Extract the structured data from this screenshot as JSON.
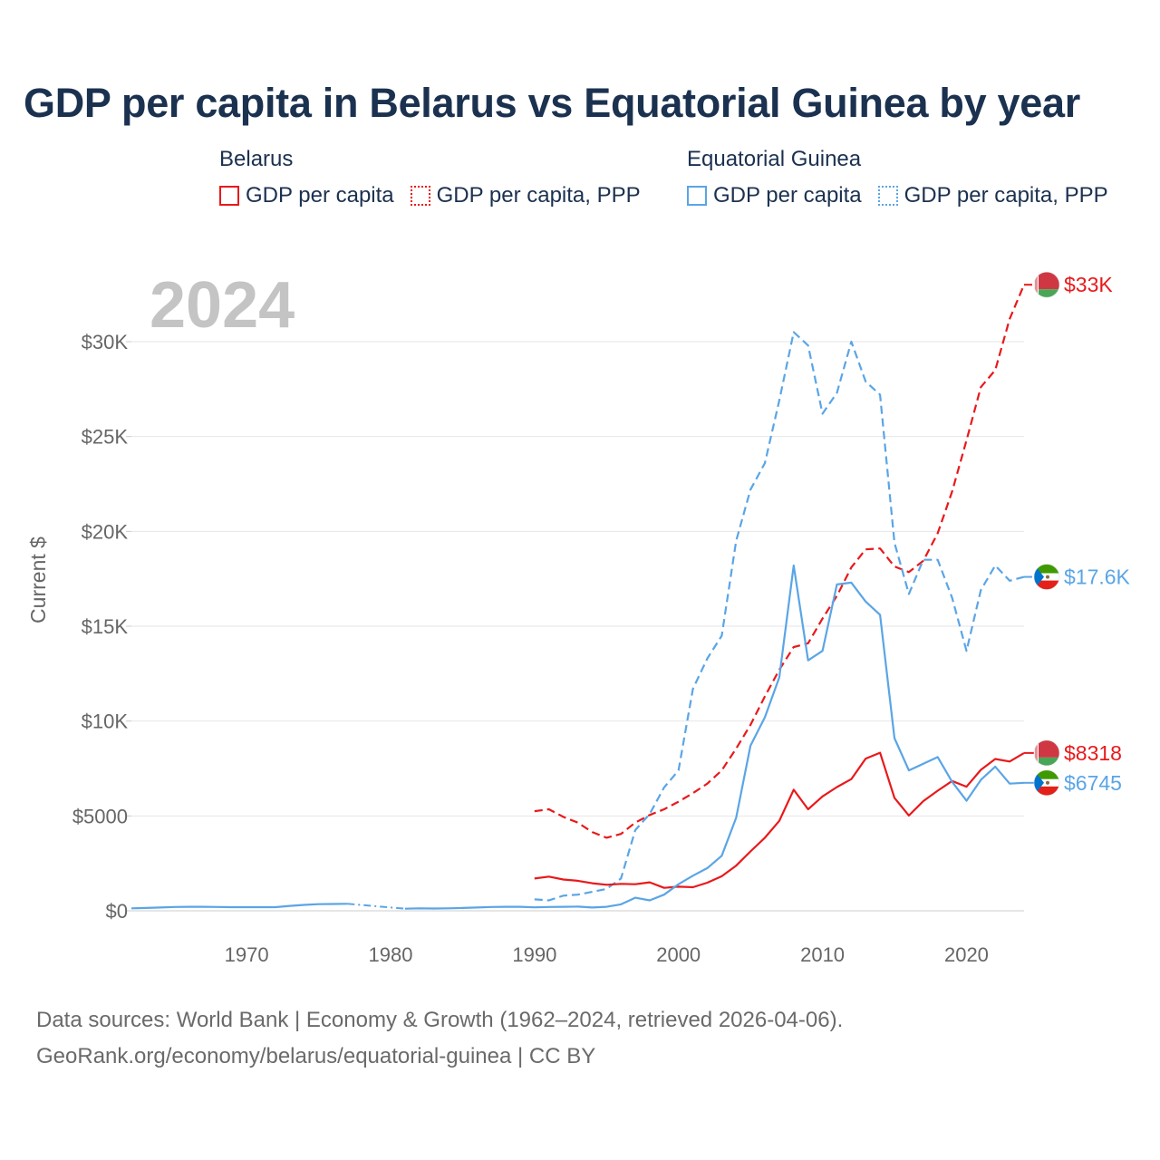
{
  "title": "GDP per capita in Belarus vs Equatorial Guinea by year",
  "year_label": "2024",
  "legend": {
    "groups": [
      {
        "country": "Belarus",
        "color": "#e8191b",
        "solid_label": "GDP per capita",
        "ppp_label": "GDP per capita, PPP"
      },
      {
        "country": "Equatorial Guinea",
        "color": "#5aa5e6",
        "solid_label": "GDP per capita",
        "ppp_label": "GDP per capita, PPP"
      }
    ]
  },
  "footer": {
    "line1": "Data sources: World Bank | Economy & Growth (1962–2024, retrieved 2026-04-06).",
    "line2": "GeoRank.org/economy/belarus/equatorial-guinea | CC BY"
  },
  "chart_data": {
    "type": "line",
    "title": "GDP per capita in Belarus vs Equatorial Guinea by year",
    "xlabel": "",
    "ylabel": "Current $",
    "xlim": [
      1962,
      2024
    ],
    "ylim": [
      0,
      33000
    ],
    "x_ticks": [
      1970,
      1980,
      1990,
      2000,
      2010,
      2020
    ],
    "y_ticks": [
      0,
      5000,
      10000,
      15000,
      20000,
      25000,
      30000
    ],
    "y_tick_labels": [
      "$0",
      "$5000",
      "$10K",
      "$15K",
      "$20K",
      "$25K",
      "$30K"
    ],
    "grid": true,
    "series": [
      {
        "name": "Belarus GDP per capita, PPP",
        "country": "Belarus",
        "style": "dashed",
        "color": "#e8191b",
        "flag": "belarus",
        "end_label": "$33K",
        "x": [
          1990,
          1991,
          1992,
          1993,
          1994,
          1995,
          1996,
          1997,
          1998,
          1999,
          2000,
          2001,
          2002,
          2003,
          2004,
          2005,
          2006,
          2007,
          2008,
          2009,
          2010,
          2011,
          2012,
          2013,
          2014,
          2015,
          2016,
          2017,
          2018,
          2019,
          2020,
          2021,
          2022,
          2023,
          2024
        ],
        "values": [
          5250,
          5350,
          4950,
          4650,
          4150,
          3850,
          4050,
          4650,
          5050,
          5350,
          5750,
          6200,
          6700,
          7400,
          8550,
          9800,
          11300,
          12700,
          13900,
          14100,
          15400,
          16600,
          18100,
          19050,
          19100,
          18150,
          17850,
          18450,
          19900,
          22100,
          24800,
          27600,
          28500,
          31200,
          33000
        ]
      },
      {
        "name": "Equatorial Guinea GDP per capita, PPP",
        "country": "Equatorial Guinea",
        "style": "dashed",
        "color": "#5aa5e6",
        "flag": "equatorial-guinea",
        "end_label": "$17.6K",
        "x": [
          1990,
          1991,
          1992,
          1993,
          1994,
          1995,
          1996,
          1997,
          1998,
          1999,
          2000,
          2001,
          2002,
          2003,
          2004,
          2005,
          2006,
          2007,
          2008,
          2009,
          2010,
          2011,
          2012,
          2013,
          2014,
          2015,
          2016,
          2017,
          2018,
          2019,
          2020,
          2021,
          2022,
          2023,
          2024
        ],
        "values": [
          600,
          550,
          800,
          850,
          1000,
          1150,
          1700,
          4250,
          5100,
          6500,
          7400,
          11700,
          13300,
          14500,
          19500,
          22200,
          23600,
          26900,
          30500,
          29800,
          26200,
          27300,
          30000,
          27900,
          27200,
          19400,
          16700,
          18500,
          18500,
          16500,
          13700,
          16900,
          18200,
          17400,
          17600
        ]
      },
      {
        "name": "Belarus GDP per capita",
        "country": "Belarus",
        "style": "solid",
        "color": "#e8191b",
        "flag": "belarus",
        "end_label": "$8318",
        "x": [
          1990,
          1991,
          1992,
          1993,
          1994,
          1995,
          1996,
          1997,
          1998,
          1999,
          2000,
          2001,
          2002,
          2003,
          2004,
          2005,
          2006,
          2007,
          2008,
          2009,
          2010,
          2011,
          2012,
          2013,
          2014,
          2015,
          2016,
          2017,
          2018,
          2019,
          2020,
          2021,
          2022,
          2023,
          2024
        ],
        "values": [
          1700,
          1800,
          1650,
          1580,
          1450,
          1370,
          1420,
          1400,
          1500,
          1210,
          1270,
          1240,
          1480,
          1820,
          2380,
          3130,
          3850,
          4740,
          6380,
          5350,
          6030,
          6520,
          6940,
          8020,
          8330,
          5950,
          5020,
          5780,
          6330,
          6840,
          6540,
          7430,
          8000,
          7870,
          8318
        ]
      },
      {
        "name": "Equatorial Guinea GDP per capita",
        "country": "Equatorial Guinea",
        "style": "solid",
        "color": "#5aa5e6",
        "flag": "equatorial-guinea",
        "end_label": "$6745",
        "x": [
          1962,
          1963,
          1964,
          1965,
          1966,
          1967,
          1968,
          1969,
          1970,
          1971,
          1972,
          1973,
          1974,
          1975,
          1976,
          1977,
          1978,
          1979,
          1980,
          1981,
          1982,
          1983,
          1984,
          1985,
          1986,
          1987,
          1988,
          1989,
          1990,
          1991,
          1992,
          1993,
          1994,
          1995,
          1996,
          1997,
          1998,
          1999,
          2000,
          2001,
          2002,
          2003,
          2004,
          2005,
          2006,
          2007,
          2008,
          2009,
          2010,
          2011,
          2012,
          2013,
          2014,
          2015,
          2016,
          2017,
          2018,
          2019,
          2020,
          2021,
          2022,
          2023,
          2024
        ],
        "values": [
          130,
          150,
          170,
          200,
          210,
          210,
          200,
          190,
          190,
          190,
          190,
          260,
          310,
          350,
          360,
          370,
          null,
          null,
          null,
          110,
          130,
          120,
          130,
          150,
          170,
          200,
          210,
          210,
          180,
          200,
          210,
          220,
          170,
          210,
          340,
          690,
          550,
          850,
          1400,
          1850,
          2250,
          2900,
          4900,
          8700,
          10200,
          12300,
          18200,
          13200,
          13700,
          17200,
          17300,
          16300,
          15600,
          9100,
          7400,
          7750,
          8100,
          6800,
          5800,
          6900,
          7600,
          6700,
          6745
        ]
      }
    ]
  }
}
